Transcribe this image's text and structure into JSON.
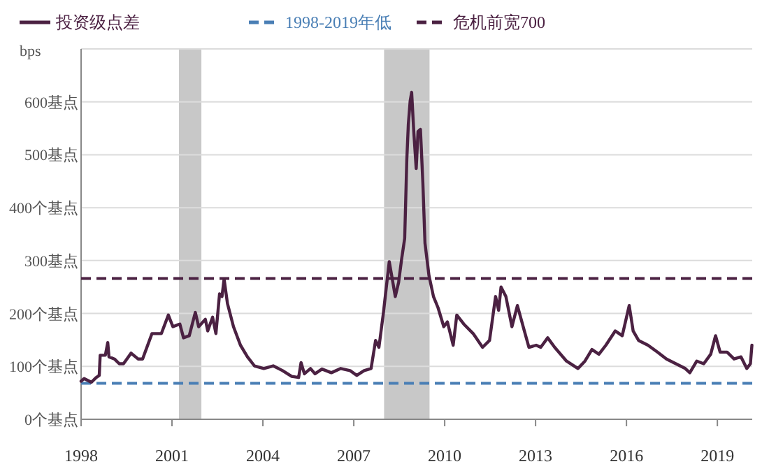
{
  "chart_data": {
    "type": "line",
    "ylabel": "bps",
    "xlim": [
      1998,
      2020.15
    ],
    "xticks": [
      1998,
      2001,
      2004,
      2007,
      2010,
      2013,
      2016,
      2019
    ],
    "ylim": [
      0,
      700
    ],
    "yticks": [
      {
        "value": 0,
        "label": "0个基点"
      },
      {
        "value": 100,
        "label": "100个基点"
      },
      {
        "value": 200,
        "label": "200个基点"
      },
      {
        "value": 300,
        "label": "300基点"
      },
      {
        "value": 400,
        "label": "400个基点"
      },
      {
        "value": 500,
        "label": "500基点"
      },
      {
        "value": 600,
        "label": "600基点"
      },
      {
        "value": 700,
        "label": null
      }
    ],
    "grid": "y",
    "legend": "top",
    "marker": "none",
    "line_style": "solid",
    "series": [
      {
        "name": "投资级点差",
        "color": "#4b2142",
        "x": [
          1998.0,
          1998.1,
          1998.34,
          1998.5,
          1998.6,
          1998.63,
          1998.8,
          1998.88,
          1998.92,
          1999.1,
          1999.26,
          1999.4,
          1999.65,
          1999.88,
          2000.03,
          2000.34,
          2000.65,
          2000.88,
          2001.03,
          2001.26,
          2001.38,
          2001.57,
          2001.77,
          2001.88,
          2002.1,
          2002.18,
          2002.34,
          2002.45,
          2002.57,
          2002.65,
          2002.72,
          2002.83,
          2003.03,
          2003.26,
          2003.49,
          2003.72,
          2004.03,
          2004.34,
          2004.65,
          2004.95,
          2005.18,
          2005.26,
          2005.37,
          2005.57,
          2005.72,
          2005.95,
          2006.26,
          2006.57,
          2006.88,
          2007.1,
          2007.34,
          2007.57,
          2007.72,
          2007.83,
          2007.98,
          2008.1,
          2008.17,
          2008.25,
          2008.37,
          2008.48,
          2008.58,
          2008.68,
          2008.75,
          2008.8,
          2008.86,
          2008.91,
          2008.98,
          2009.06,
          2009.12,
          2009.2,
          2009.28,
          2009.35,
          2009.48,
          2009.63,
          2009.78,
          2009.97,
          2010.09,
          2010.28,
          2010.4,
          2010.63,
          2010.94,
          2011.25,
          2011.48,
          2011.68,
          2011.78,
          2011.86,
          2012.02,
          2012.22,
          2012.4,
          2012.63,
          2012.78,
          2013.02,
          2013.17,
          2013.4,
          2013.63,
          2014.02,
          2014.4,
          2014.63,
          2014.86,
          2015.09,
          2015.32,
          2015.63,
          2015.86,
          2016.09,
          2016.22,
          2016.4,
          2016.71,
          2017.02,
          2017.32,
          2017.63,
          2017.94,
          2018.09,
          2018.32,
          2018.55,
          2018.78,
          2018.94,
          2019.09,
          2019.32,
          2019.55,
          2019.78,
          2019.97,
          2020.09,
          2020.14
        ],
        "values": [
          72,
          77,
          70,
          79,
          83,
          121,
          121,
          145,
          118,
          114,
          105,
          105,
          125,
          114,
          114,
          162,
          162,
          197,
          175,
          180,
          154,
          158,
          202,
          175,
          189,
          167,
          193,
          162,
          237,
          232,
          265,
          219,
          175,
          140,
          118,
          101,
          96,
          101,
          92,
          81,
          79,
          107,
          86,
          96,
          86,
          95,
          88,
          96,
          92,
          83,
          92,
          96,
          149,
          136,
          202,
          263,
          298,
          272,
          232,
          259,
          303,
          342,
          491,
          557,
          601,
          618,
          544,
          474,
          544,
          548,
          447,
          333,
          272,
          232,
          211,
          175,
          184,
          140,
          197,
          180,
          162,
          136,
          149,
          232,
          206,
          250,
          232,
          175,
          215,
          167,
          136,
          140,
          136,
          154,
          136,
          110,
          96,
          110,
          132,
          123,
          140,
          167,
          158,
          215,
          167,
          149,
          140,
          127,
          114,
          105,
          96,
          88,
          110,
          105,
          123,
          158,
          127,
          127,
          114,
          118,
          96,
          105,
          140
        ]
      }
    ],
    "ref_lines": [
      {
        "axis": "y",
        "value": 68,
        "label": "1998-2019年低",
        "color": "#4a7fb5",
        "line_style": "dashed"
      },
      {
        "axis": "y",
        "value": 266,
        "label": "危机前宽700",
        "color": "#4b2142",
        "line_style": "dashed"
      }
    ],
    "bands": [
      {
        "axis": "x",
        "from": 2001.23,
        "to": 2001.97,
        "color": "#c8c8c8"
      },
      {
        "axis": "x",
        "from": 2008.0,
        "to": 2009.5,
        "color": "#c8c8c8"
      }
    ]
  }
}
